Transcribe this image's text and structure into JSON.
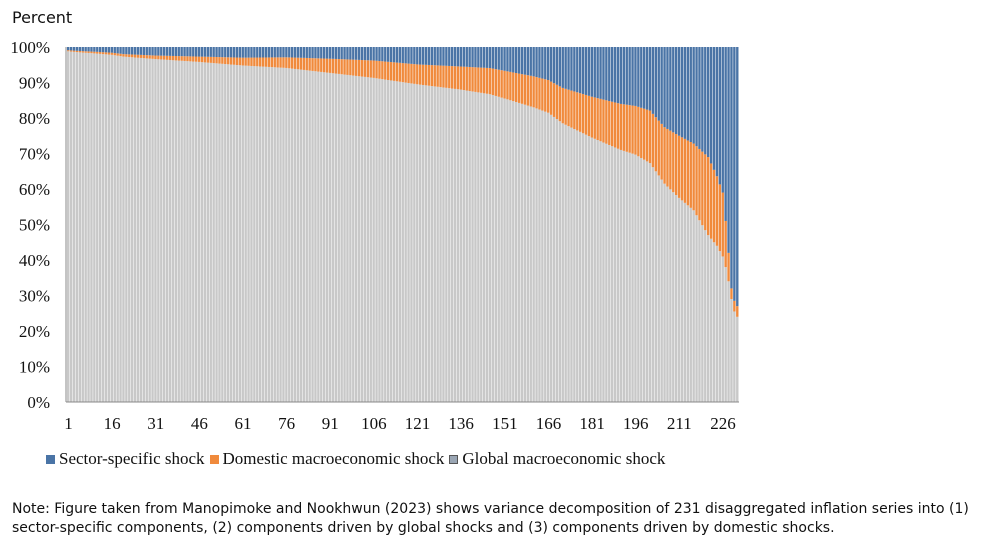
{
  "chart_data": {
    "type": "bar",
    "stacked": true,
    "ylabel": "Percent",
    "ylim": [
      0,
      100
    ],
    "y_ticks": [
      "0%",
      "10%",
      "20%",
      "30%",
      "40%",
      "50%",
      "60%",
      "70%",
      "80%",
      "90%",
      "100%"
    ],
    "y_tick_values": [
      0,
      10,
      20,
      30,
      40,
      50,
      60,
      70,
      80,
      90,
      100
    ],
    "x_ticks": [
      "1",
      "16",
      "31",
      "46",
      "61",
      "76",
      "91",
      "106",
      "121",
      "136",
      "151",
      "166",
      "181",
      "196",
      "211",
      "226"
    ],
    "x_tick_values": [
      1,
      16,
      31,
      46,
      61,
      76,
      91,
      106,
      121,
      136,
      151,
      166,
      181,
      196,
      211,
      226
    ],
    "n_series": 231,
    "grid": false,
    "legend_position": "bottom",
    "stack_order": [
      "Global macroeconomic shock",
      "Domestic macroeconomic shock",
      "Sector-specific shock"
    ],
    "series_colors": {
      "Global macroeconomic shock": "#c8c8c8",
      "Domestic macroeconomic shock": "#f08a3c",
      "Sector-specific shock": "#4a74a6"
    },
    "global_profile": {
      "x": [
        1,
        5,
        10,
        16,
        20,
        31,
        46,
        61,
        76,
        91,
        106,
        121,
        136,
        146,
        151,
        161,
        166,
        171,
        181,
        191,
        196,
        201,
        206,
        211,
        216,
        221,
        224,
        226,
        227,
        228,
        229,
        230,
        231
      ],
      "y": [
        98.8,
        98.5,
        98.2,
        97.8,
        97.3,
        96.6,
        95.8,
        94.8,
        94.1,
        92.7,
        91.3,
        89.5,
        88.0,
        86.7,
        85.5,
        83.0,
        81.5,
        78.5,
        74.5,
        71.0,
        69.7,
        67.3,
        61.5,
        57.5,
        54.0,
        47.0,
        44.0,
        41.0,
        38.0,
        34.0,
        29.0,
        25.5,
        24.0
      ]
    },
    "domestic_profile": {
      "x": [
        1,
        16,
        31,
        46,
        61,
        76,
        91,
        106,
        121,
        136,
        151,
        166,
        181,
        196,
        206,
        211,
        216,
        221,
        226,
        229,
        231
      ],
      "y": [
        0.3,
        0.6,
        1.0,
        1.5,
        2.2,
        3.0,
        4.0,
        4.9,
        5.6,
        6.5,
        7.8,
        9.2,
        11.5,
        13.7,
        15.9,
        17.5,
        18.8,
        22.0,
        18.0,
        3.0,
        3.0
      ]
    },
    "legend": [
      "Sector-specific shock",
      "Domestic macroeconomic shock",
      "Global macroeconomic shock"
    ]
  },
  "note": "Note: Figure taken from Manopimoke and Nookhwun (2023) shows variance decomposition of 231 disaggregated inflation series into (1) sector-specific components, (2) components driven by global shocks and (3) components driven by domestic shocks."
}
